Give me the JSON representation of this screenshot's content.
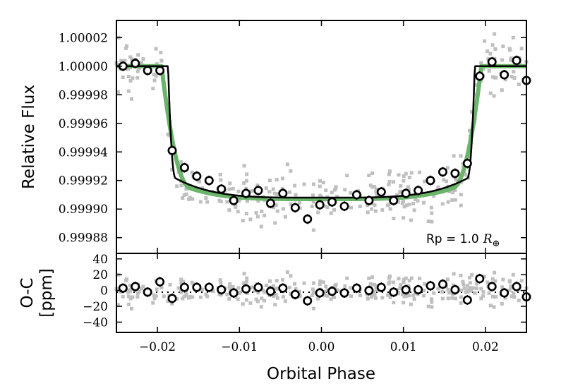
{
  "chart_data": [
    {
      "type": "scatter",
      "panel": "top",
      "xlabel": "Orbital Phase",
      "ylabel": "Relative Flux",
      "xlim": [
        -0.025,
        0.025
      ],
      "ylim": [
        0.999869,
        1.000032
      ],
      "y_ticks": [
        0.99988,
        0.9999,
        0.99992,
        0.99994,
        0.99996,
        0.99998,
        1.0,
        1.00002
      ],
      "y_tick_labels": [
        "0.99988",
        "0.99990",
        "0.99992",
        "0.99994",
        "0.99996",
        "0.99998",
        "1.00000",
        "1.00002"
      ],
      "x_ticks": [
        -0.02,
        -0.01,
        0.0,
        0.01,
        0.02
      ],
      "x_tick_labels": [
        "−0.02",
        "−0.01",
        "0.00",
        "0.01",
        "0.02"
      ],
      "annotation": {
        "text": "Rp = 1.0",
        "symbol": "R",
        "subscript": "⊕"
      },
      "binned": {
        "x": [
          -0.0242,
          -0.0227,
          -0.0212,
          -0.0197,
          -0.0182,
          -0.0167,
          -0.0152,
          -0.0137,
          -0.0122,
          -0.0107,
          -0.0092,
          -0.0077,
          -0.0062,
          -0.0047,
          -0.0032,
          -0.0017,
          -0.0002,
          0.0013,
          0.0028,
          0.0043,
          0.0058,
          0.0073,
          0.0088,
          0.0103,
          0.0118,
          0.0133,
          0.0148,
          0.0163,
          0.0178,
          0.0193,
          0.0208,
          0.0223,
          0.0238,
          0.025
        ],
        "y": [
          1.0,
          1.000002,
          0.999997,
          0.999997,
          0.999941,
          0.999929,
          0.999923,
          0.99992,
          0.999914,
          0.999906,
          0.999911,
          0.999913,
          0.999904,
          0.999911,
          0.999901,
          0.999893,
          0.999903,
          0.999905,
          0.999902,
          0.99991,
          0.999906,
          0.999912,
          0.999906,
          0.999911,
          0.999913,
          0.99992,
          0.999926,
          0.999925,
          0.999932,
          0.999993,
          1.000003,
          0.999994,
          1.000004,
          0.99999
        ]
      },
      "models": [
        {
          "name": "limb-darkened model",
          "color": "#6bb56b",
          "x0": 0.0195,
          "depth": 9.3e-05
        },
        {
          "name": "box model",
          "color": "#000000",
          "x0": 0.0187,
          "depth": 9.2e-05
        }
      ]
    },
    {
      "type": "scatter",
      "panel": "bottom",
      "ylabel": [
        "O-C",
        "[ppm]"
      ],
      "ylim": [
        -53,
        47
      ],
      "y_ticks": [
        -40,
        -20,
        0,
        20,
        40
      ],
      "y_tick_labels": [
        "−40",
        "−20",
        "0",
        "20",
        "40"
      ],
      "binned_residuals": [
        3,
        5,
        -2,
        11,
        -10,
        4,
        4,
        4,
        1,
        -3,
        2,
        4,
        -1,
        3,
        -5,
        -13,
        -3,
        -1,
        -3,
        3,
        0,
        4,
        -2,
        1,
        1,
        6,
        8,
        1,
        -12,
        15,
        5,
        -3,
        5,
        -8
      ]
    }
  ],
  "colors": {
    "raw": "#bfbfbf",
    "model_green": "#6bb56b",
    "model_black": "#000000",
    "axis": "#000000"
  }
}
